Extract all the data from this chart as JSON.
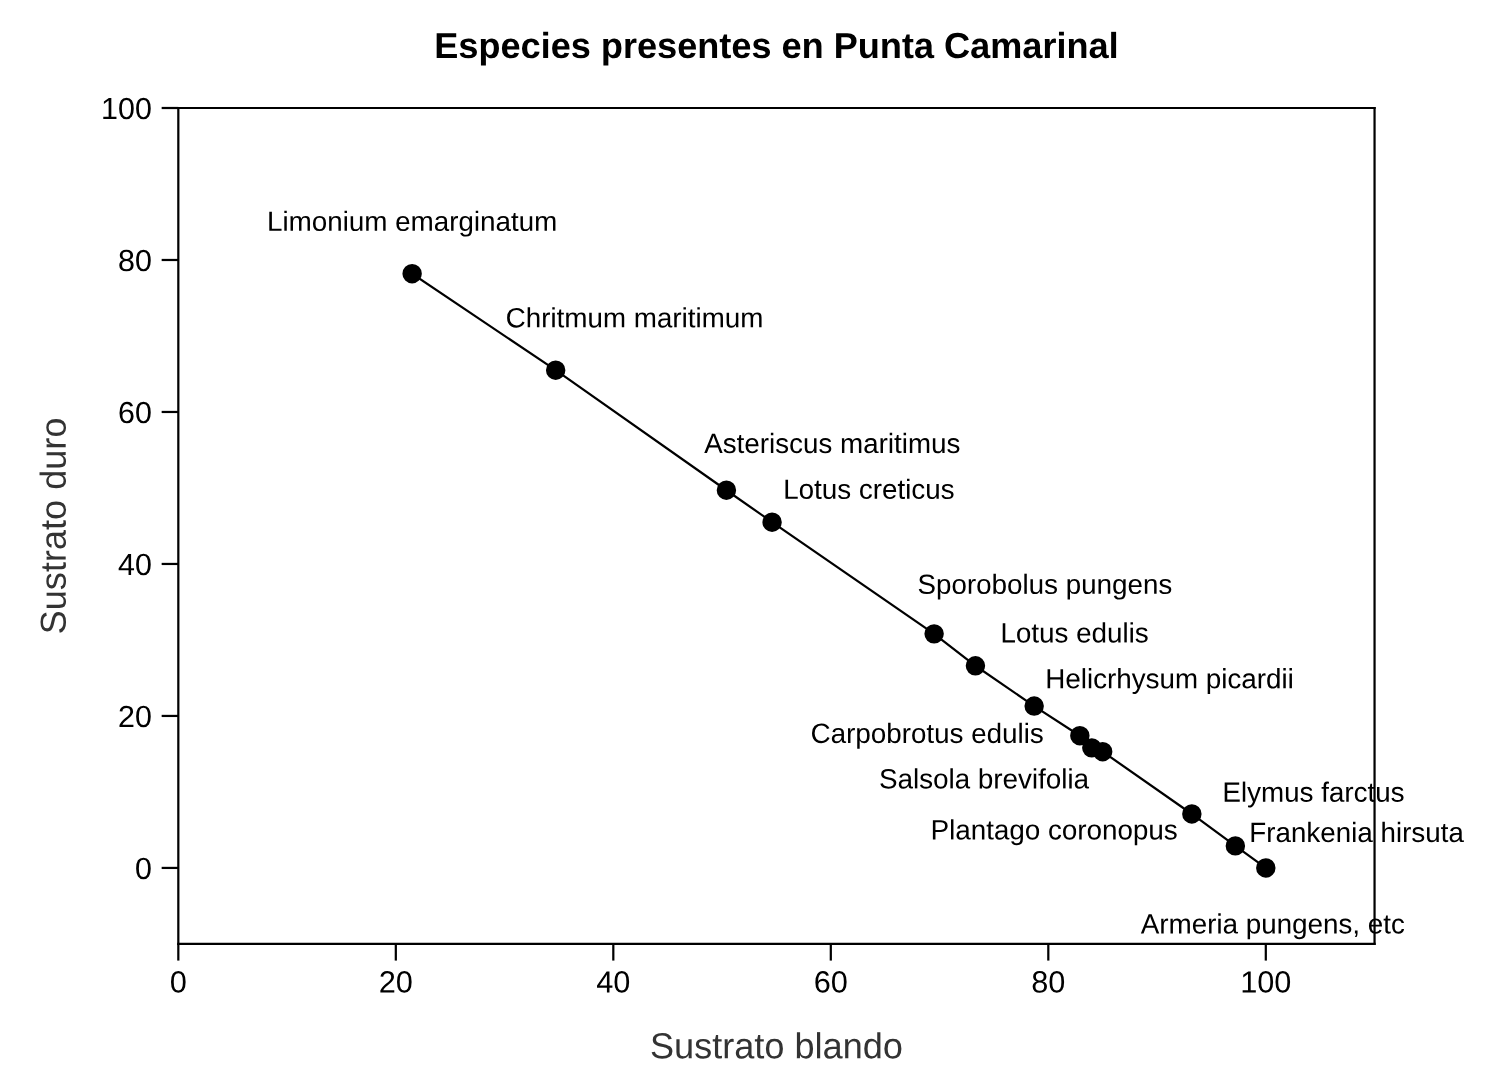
{
  "chart_data": {
    "type": "line",
    "title": "Especies presentes en Punta Camarinal",
    "xlabel": "Sustrato blando",
    "ylabel": "Sustrato duro",
    "x": [
      21.5,
      34.7,
      50.4,
      54.6,
      69.5,
      73.3,
      78.7,
      82.9,
      84.0,
      85.0,
      93.2,
      97.2,
      100
    ],
    "series": [
      {
        "color": "#000000",
        "values": [
          78.2,
          65.5,
          49.7,
          45.5,
          30.8,
          26.6,
          21.3,
          17.4,
          15.8,
          15.3,
          7.1,
          2.9,
          0
        ]
      }
    ],
    "marker": "circle",
    "line_style": "solid",
    "grid": false,
    "legend": false,
    "xlim": [
      0,
      110
    ],
    "ylim": [
      -10,
      100
    ],
    "xticks": [
      0,
      20,
      40,
      60,
      80,
      100
    ],
    "yticks": [
      0,
      20,
      40,
      60,
      80,
      100
    ],
    "annotations": [
      {
        "text": "Limonium emarginatum",
        "x": 21.5,
        "y": 78.2
      },
      {
        "text": "Chritmum maritimum",
        "x": 34.7,
        "y": 65.5
      },
      {
        "text": "Asteriscus maritimus",
        "x": 50.4,
        "y": 49.7
      },
      {
        "text": "Lotus creticus",
        "x": 54.6,
        "y": 45.5
      },
      {
        "text": "Sporobolus pungens",
        "x": 69.5,
        "y": 30.8
      },
      {
        "text": "Lotus edulis",
        "x": 73.3,
        "y": 26.6
      },
      {
        "text": "Helicrhysum picardii",
        "x": 78.7,
        "y": 21.3
      },
      {
        "text": "Carpobrotus edulis",
        "x": 82.9,
        "y": 17.4
      },
      {
        "text": "Salsola brevifolia",
        "x": 84.0,
        "y": 15.8
      },
      {
        "text": "Plantago coronopus",
        "x": 85.0,
        "y": 15.3
      },
      {
        "text": "Elymus farctus",
        "x": 93.2,
        "y": 7.1
      },
      {
        "text": "Frankenia hirsuta",
        "x": 97.2,
        "y": 2.9
      },
      {
        "text": "Armeria pungens, etc",
        "x": 100,
        "y": 0
      }
    ]
  }
}
